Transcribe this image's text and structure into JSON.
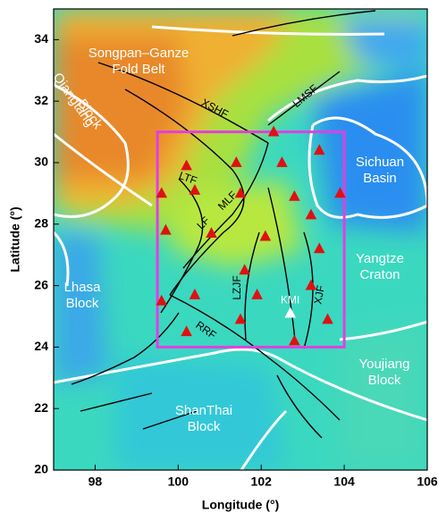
{
  "chart_data": {
    "type": "map",
    "xlabel": "Longitude (°)",
    "ylabel": "Latitude (°)",
    "xlim": [
      97,
      106
    ],
    "ylim": [
      20,
      35
    ],
    "xticks": [
      98,
      100,
      102,
      104,
      106
    ],
    "yticks": [
      20,
      22,
      24,
      26,
      28,
      30,
      32,
      34
    ],
    "box": {
      "color": "#e040e0",
      "xlim": [
        99.5,
        104
      ],
      "ylim": [
        24,
        31
      ]
    },
    "series": [
      {
        "color": "#e01010",
        "x": [
          102.3,
          103.4,
          102.5,
          100.2,
          101.4,
          99.6,
          100.4,
          101.5,
          102.8,
          103.9,
          103.2,
          99.7,
          100.8,
          102.1,
          103.4,
          101.6,
          103.2,
          100.4,
          101.9,
          99.6,
          101.5,
          103.6,
          100.2,
          102.8
        ],
        "values": [
          31.0,
          30.4,
          30.0,
          29.9,
          30.0,
          29.0,
          29.1,
          29.0,
          28.9,
          29.0,
          28.3,
          27.8,
          27.7,
          27.6,
          27.2,
          26.5,
          26.0,
          25.7,
          25.7,
          25.5,
          24.9,
          24.9,
          24.5,
          24.2
        ]
      }
    ],
    "reference": {
      "label": "KMI",
      "x": 102.7,
      "y": 25.1,
      "color": "#ffffff"
    },
    "labels": {
      "songpan": [
        "Songpan–Ganze",
        "Fold Belt"
      ],
      "qiangtang": [
        "Qiangtang",
        "Block"
      ],
      "sichuan": [
        "Sichuan",
        "Basin"
      ],
      "yangtze": [
        "Yangtze",
        "Craton"
      ],
      "lhasa": [
        "Lhasa",
        "Block"
      ],
      "youjiang": [
        "Youjiang",
        "Block"
      ],
      "shanthai": [
        "ShanThai",
        "Block"
      ]
    },
    "faults": {
      "xshf": "XSHF",
      "lmsf": "LMSF",
      "ltf": "LTF",
      "mlf": "MLF",
      "lf": "LF",
      "lzjf": "LZJF",
      "xjf": "XJF",
      "rrf": "RRF"
    }
  }
}
